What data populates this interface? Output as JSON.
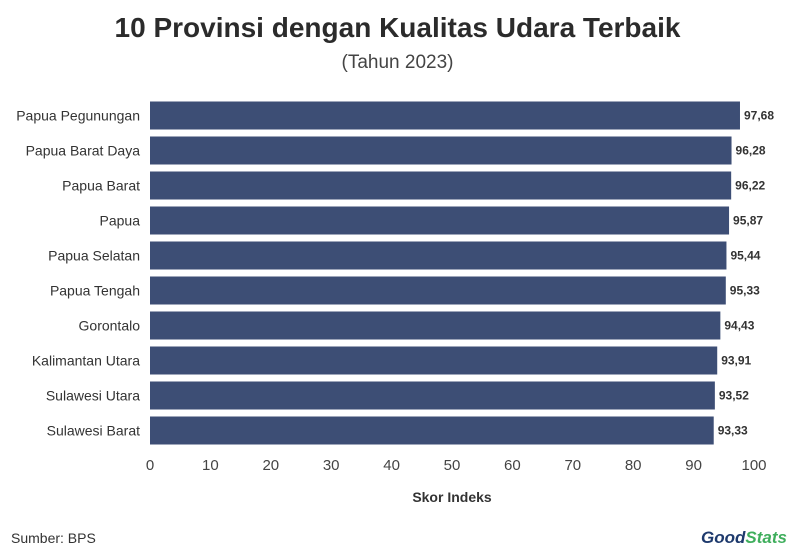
{
  "chart_data": {
    "type": "bar",
    "orientation": "horizontal",
    "title": "10 Provinsi dengan Kualitas Udara Terbaik",
    "subtitle": "(Tahun 2023)",
    "xlabel": "Skor Indeks",
    "ylabel": "",
    "xlim": [
      0,
      100
    ],
    "xticks": [
      "0",
      "10",
      "20",
      "30",
      "40",
      "50",
      "60",
      "70",
      "80",
      "90",
      "100"
    ],
    "categories": [
      "Papua Pegunungan",
      "Papua Barat Daya",
      "Papua Barat",
      "Papua",
      "Papua Selatan",
      "Papua Tengah",
      "Gorontalo",
      "Kalimantan Utara",
      "Sulawesi Utara",
      "Sulawesi Barat"
    ],
    "values": [
      97.68,
      96.28,
      96.22,
      95.87,
      95.44,
      95.33,
      94.43,
      93.91,
      93.52,
      93.33
    ],
    "value_labels": [
      "97,68",
      "96,28",
      "96,22",
      "95,87",
      "95,44",
      "95,33",
      "94,43",
      "93,91",
      "93,52",
      "93,33"
    ],
    "bar_color": "#3d4e75",
    "grid": false
  },
  "footer": {
    "source": "Sumber: BPS",
    "logo_part1": "Good",
    "logo_part2": "Stats"
  },
  "colors": {
    "logo_primary": "#1e3a6d",
    "logo_accent": "#3fae5c"
  }
}
